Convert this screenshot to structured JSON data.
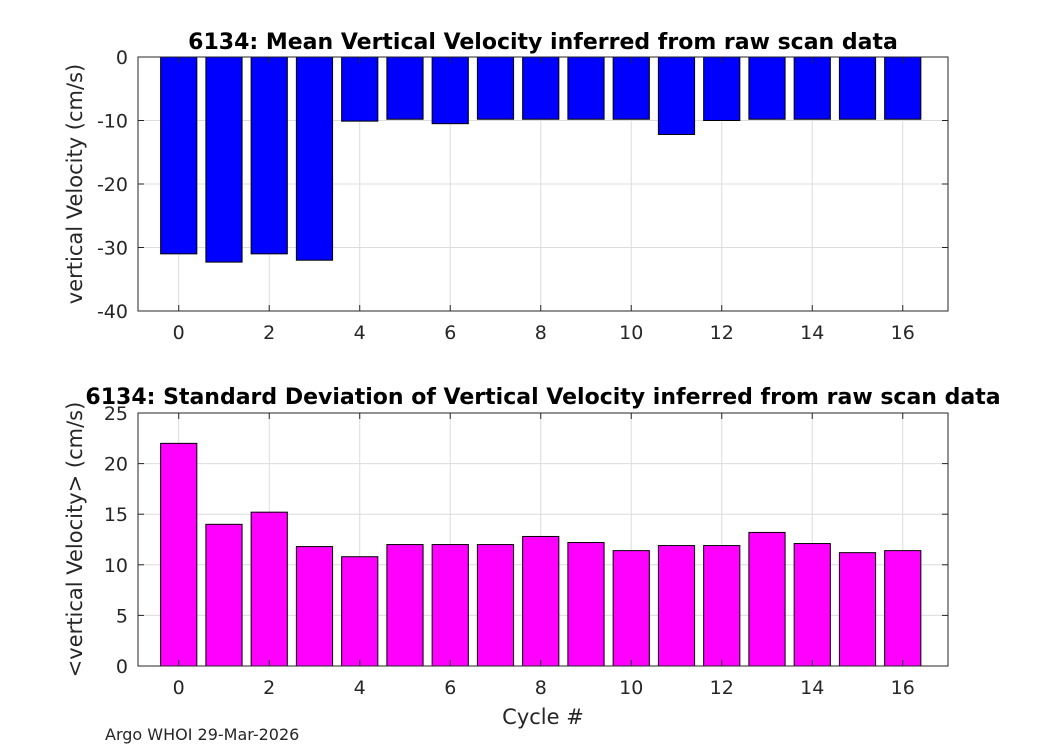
{
  "chart_data": [
    {
      "type": "bar",
      "title": "6134: Mean Vertical Velocity inferred from raw scan data",
      "xlabel": "",
      "ylabel": "vertical Velocity (cm/s)",
      "categories": [
        0,
        1,
        2,
        3,
        4,
        5,
        6,
        7,
        8,
        9,
        10,
        11,
        12,
        13,
        14,
        15,
        16
      ],
      "values": [
        -31,
        -32.3,
        -31,
        -32,
        -10.1,
        -9.8,
        -10.5,
        -9.8,
        -9.8,
        -9.8,
        -9.8,
        -12.2,
        -10,
        -9.8,
        -9.8,
        -9.8,
        -9.8
      ],
      "xticks": [
        0,
        2,
        4,
        6,
        8,
        10,
        12,
        14,
        16
      ],
      "yticks": [
        -40,
        -30,
        -20,
        -10,
        0
      ],
      "xlim": [
        -0.9,
        17
      ],
      "ylim": [
        -40,
        0
      ],
      "grid": true,
      "bar_color": "#0000ff"
    },
    {
      "type": "bar",
      "title": "6134: Standard Deviation of Vertical Velocity inferred from raw scan data",
      "xlabel": "Cycle #",
      "ylabel": "<vertical Velocity> (cm/s)",
      "categories": [
        0,
        1,
        2,
        3,
        4,
        5,
        6,
        7,
        8,
        9,
        10,
        11,
        12,
        13,
        14,
        15,
        16
      ],
      "values": [
        22,
        14,
        15.2,
        11.8,
        10.8,
        12,
        12,
        12,
        12.8,
        12.2,
        11.4,
        11.9,
        11.9,
        13.2,
        12.1,
        11.2,
        11.4
      ],
      "xticks": [
        0,
        2,
        4,
        6,
        8,
        10,
        12,
        14,
        16
      ],
      "yticks": [
        0,
        5,
        10,
        15,
        20,
        25
      ],
      "xlim": [
        -0.9,
        17
      ],
      "ylim": [
        0,
        25
      ],
      "grid": true,
      "bar_color": "#ff00ff"
    }
  ],
  "footer": {
    "text": "Argo WHOI 29-Mar-2026"
  },
  "colors": {
    "axis": "#262626",
    "grid": "#dcdcdc",
    "bar_edge": "#000000"
  }
}
